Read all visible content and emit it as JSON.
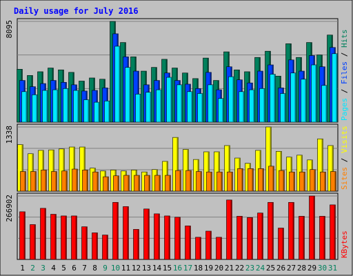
{
  "colors": {
    "background": "#c0c0c0",
    "border": "#000000",
    "title": "#0000ff",
    "hits": "#00805c",
    "files": "#0040ff",
    "pages": "#00e8ff",
    "visits": "#ffff00",
    "sites": "#ff8000",
    "kbytes": "#ff0000",
    "weekend_day": "#00805c",
    "weekday_day": "#000000"
  },
  "chart_data": {
    "title": "Daily usage for July 2016",
    "categories": [
      "1",
      "2",
      "3",
      "4",
      "5",
      "6",
      "7",
      "8",
      "9",
      "10",
      "11",
      "12",
      "13",
      "14",
      "15",
      "16",
      "17",
      "18",
      "19",
      "20",
      "21",
      "22",
      "23",
      "24",
      "25",
      "26",
      "27",
      "28",
      "29",
      "30",
      "31"
    ],
    "weekend_days": [
      "2",
      "3",
      "9",
      "10",
      "16",
      "17",
      "23",
      "24",
      "30",
      "31"
    ],
    "panels": [
      {
        "type": "bar",
        "axis_max_label": "8095",
        "ylim": [
          0,
          8095
        ],
        "legend": [
          {
            "name": "Hits",
            "color_key": "hits"
          },
          {
            "name": "Files",
            "color_key": "files"
          },
          {
            "name": "Pages",
            "color_key": "pages"
          }
        ],
        "series": [
          {
            "name": "Hits",
            "color_key": "hits",
            "values": [
              4250,
              3750,
              4050,
              4350,
              4200,
              4000,
              3300,
              3550,
              3450,
              8095,
              6400,
              5250,
              4100,
              4400,
              5050,
              4350,
              3950,
              3500,
              5150,
              3350,
              5650,
              4200,
              4050,
              5200,
              5700,
              3700,
              6300,
              5200,
              6400,
              5400,
              7000
            ]
          },
          {
            "name": "Files",
            "color_key": "files",
            "values": [
              3350,
              2850,
              3100,
              3350,
              3200,
              3000,
              2500,
              2550,
              2750,
              7100,
              5250,
              4100,
              3000,
              3350,
              3950,
              3350,
              3050,
              2700,
              4000,
              2600,
              4450,
              3400,
              3150,
              4100,
              4600,
              2750,
              5000,
              4100,
              5350,
              4450,
              6000
            ]
          },
          {
            "name": "Pages",
            "color_key": "pages",
            "values": [
              2450,
              2200,
              2550,
              2600,
              2700,
              2550,
              1800,
              1600,
              1700,
              6100,
              4400,
              2250,
              2400,
              2600,
              3600,
              3000,
              2450,
              2300,
              3000,
              1900,
              3650,
              2450,
              2600,
              2700,
              3850,
              2300,
              3950,
              3450,
              4600,
              2950,
              5500
            ]
          }
        ]
      },
      {
        "type": "bar",
        "axis_max_label": "1338",
        "ylim": [
          0,
          1338
        ],
        "legend": [
          {
            "name": "Visits",
            "color_key": "visits"
          },
          {
            "name": "Sites",
            "color_key": "sites"
          }
        ],
        "series": [
          {
            "name": "Visits",
            "color_key": "visits",
            "values": [
              970,
              780,
              850,
              860,
              880,
              920,
              920,
              480,
              420,
              440,
              420,
              440,
              400,
              450,
              620,
              1120,
              870,
              660,
              820,
              820,
              950,
              690,
              580,
              850,
              1338,
              830,
              710,
              750,
              650,
              1090,
              950
            ]
          },
          {
            "name": "Sites",
            "color_key": "sites",
            "values": [
              410,
              410,
              440,
              410,
              420,
              460,
              440,
              400,
              300,
              320,
              330,
              330,
              330,
              330,
              330,
              430,
              430,
              410,
              400,
              400,
              400,
              470,
              470,
              470,
              520,
              430,
              400,
              400,
              450,
              400,
              410
            ]
          }
        ]
      },
      {
        "type": "bar",
        "axis_max_label": "266902",
        "ylim": [
          0,
          266902
        ],
        "legend": [
          {
            "name": "KBytes",
            "color_key": "kbytes"
          }
        ],
        "series": [
          {
            "name": "KBytes",
            "color_key": "kbytes",
            "values": [
              200500,
              146600,
              215000,
              190000,
              183000,
              183000,
              137500,
              111900,
              102800,
              240000,
              222200,
              126500,
              212300,
              191800,
              183000,
              177500,
              141000,
              93300,
              119000,
              93300,
              250000,
              181600,
              176100,
              195300,
              240000,
              132000,
              240000,
              181600,
              266902,
              181600,
              229500
            ]
          }
        ]
      }
    ]
  }
}
